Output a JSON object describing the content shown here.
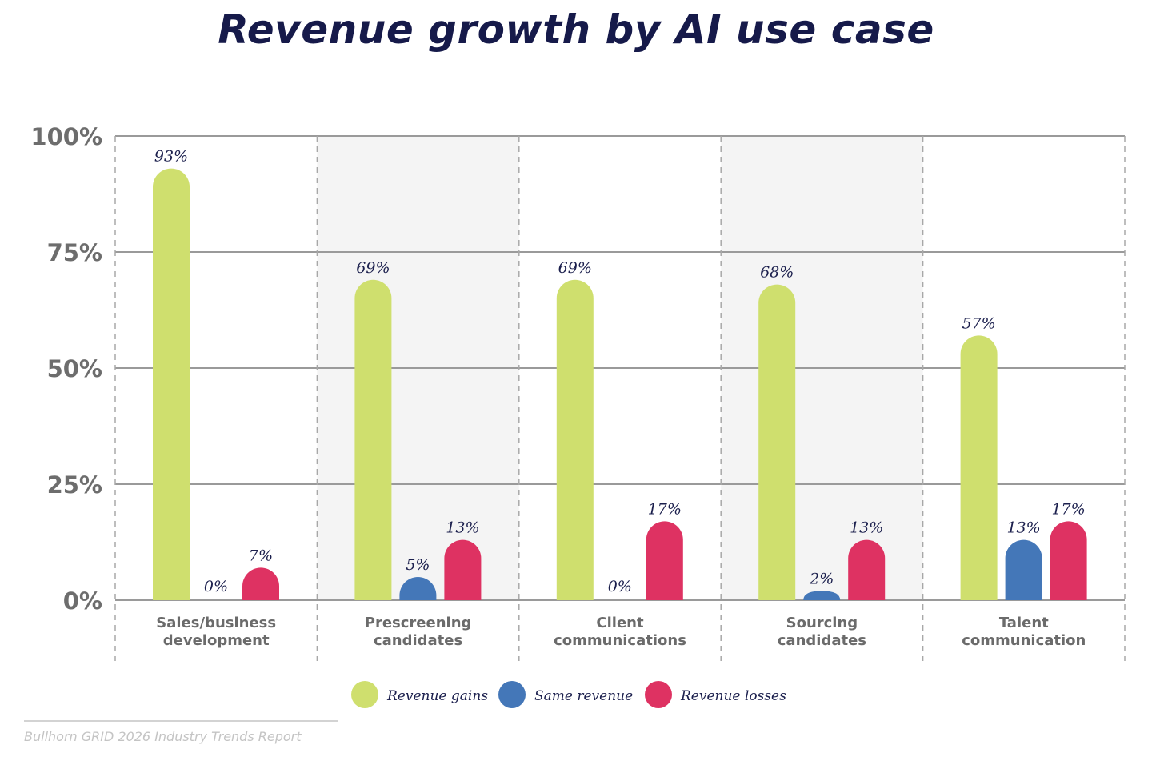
{
  "chart_data": {
    "type": "bar",
    "title": "Revenue growth by AI use case",
    "categories": [
      [
        "Sales/business",
        "development"
      ],
      [
        "Prescreening",
        "candidates"
      ],
      [
        "Client",
        "communications"
      ],
      [
        "Sourcing",
        "candidates"
      ],
      [
        "Talent",
        "communication"
      ]
    ],
    "series": [
      {
        "name": "Revenue gains",
        "color": "#cfdf6e",
        "values": [
          93,
          69,
          69,
          68,
          57
        ]
      },
      {
        "name": "Same revenue",
        "color": "#4477b8",
        "values": [
          0,
          5,
          0,
          2,
          13
        ]
      },
      {
        "name": "Revenue losses",
        "color": "#de3262",
        "values": [
          7,
          13,
          17,
          13,
          17
        ]
      }
    ],
    "value_labels": [
      [
        "93%",
        "0%",
        "7%"
      ],
      [
        "69%",
        "5%",
        "13%"
      ],
      [
        "69%",
        "0%",
        "17%"
      ],
      [
        "68%",
        "2%",
        "13%"
      ],
      [
        "57%",
        "13%",
        "17%"
      ]
    ],
    "ylim": [
      0,
      100
    ],
    "yticks": [
      "0%",
      "25%",
      "50%",
      "75%",
      "100%"
    ],
    "ytick_values": [
      0,
      25,
      50,
      75,
      100
    ],
    "grid": true,
    "legend": "bottom",
    "xlabel": "",
    "ylabel": ""
  },
  "source": "Bullhorn GRID 2026 Industry Trends Report"
}
